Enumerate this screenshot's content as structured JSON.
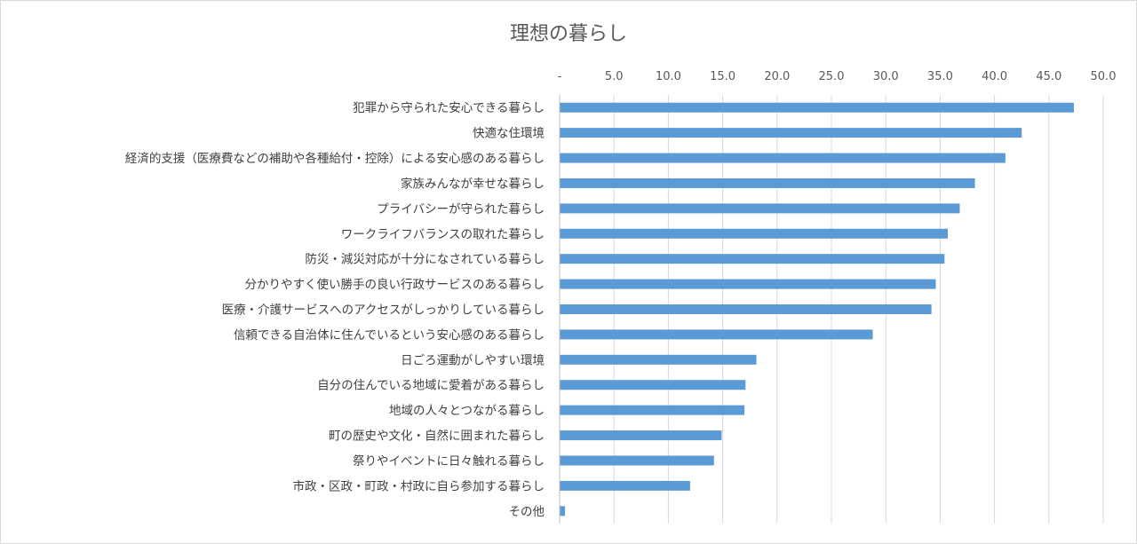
{
  "chart_data": {
    "type": "bar",
    "orientation": "horizontal",
    "title": "理想の暮らし",
    "xlabel": "",
    "ylabel": "",
    "xlim": [
      0,
      50
    ],
    "x_tick_labels": [
      "-",
      "5.0",
      "10.0",
      "15.0",
      "20.0",
      "25.0",
      "30.0",
      "35.0",
      "40.0",
      "45.0",
      "50.0"
    ],
    "x_axis_position": "top",
    "grid": true,
    "bar_color": "#5b9bd5",
    "categories": [
      "犯罪から守られた安心できる暮らし",
      "快適な住環境",
      "経済的支援（医療費などの補助や各種給付・控除）による安心感のある暮らし",
      "家族みんなが幸せな暮らし",
      "プライバシーが守られた暮らし",
      "ワークライフバランスの取れた暮らし",
      "防災・減災対応が十分になされている暮らし",
      "分かりやすく使い勝手の良い行政サービスのある暮らし",
      "医療・介護サービスへのアクセスがしっかりしている暮らし",
      "信頼できる自治体に住んでいるという安心感のある暮らし",
      "日ごろ運動がしやすい環境",
      "自分の住んでいる地域に愛着がある暮らし",
      "地域の人々とつながる暮らし",
      "町の歴史や文化・自然に囲まれた暮らし",
      "祭りやイベントに日々触れる暮らし",
      "市政・区政・町政・村政に自ら参加する暮らし",
      "その他"
    ],
    "values": [
      47.3,
      42.5,
      41.0,
      38.2,
      36.8,
      35.7,
      35.4,
      34.6,
      34.2,
      28.8,
      18.1,
      17.1,
      17.0,
      14.9,
      14.2,
      12.0,
      0.5
    ]
  }
}
